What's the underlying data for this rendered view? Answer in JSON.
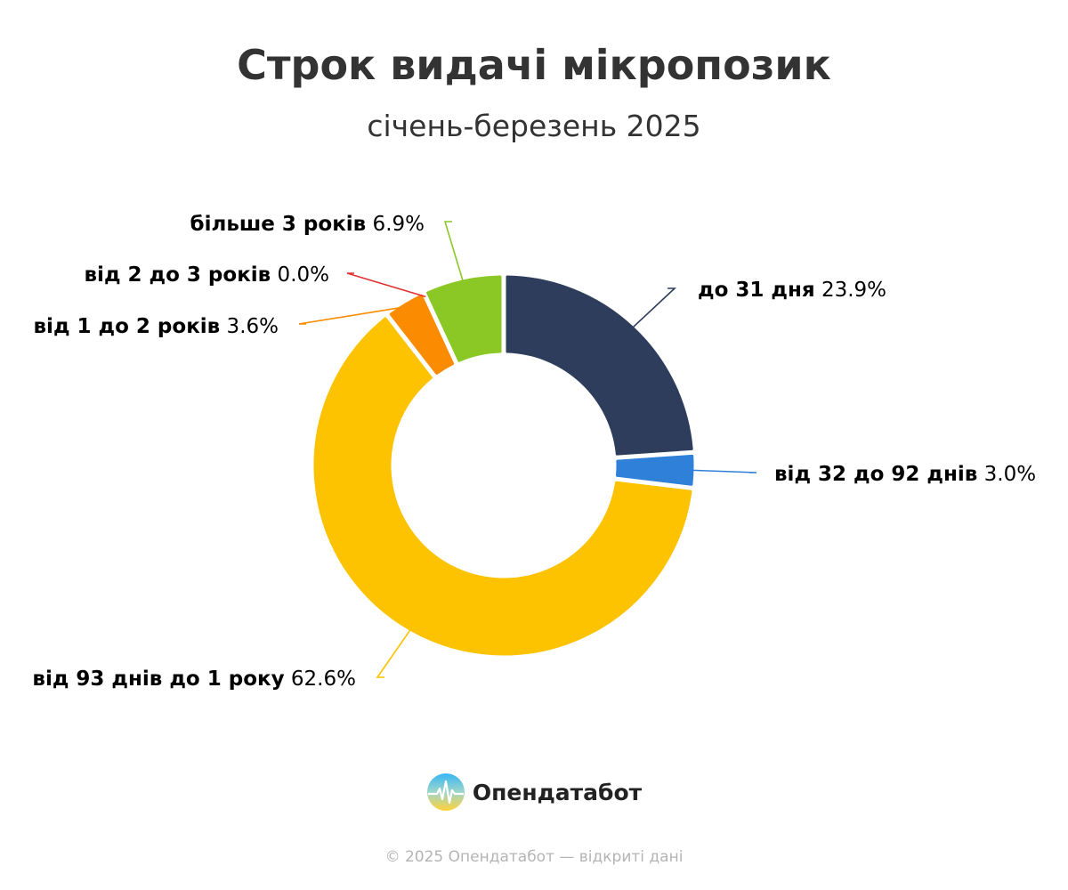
{
  "chart_data": {
    "type": "pie",
    "variant": "donut",
    "title": "Строк видачі мікропозик",
    "subtitle": "січень-березень 2025",
    "unit": "%",
    "slices": [
      {
        "label": "до 31 дня",
        "value": 23.9,
        "display": "23.9%",
        "color": "#2e3d5c"
      },
      {
        "label": "від 32 до 92 днів",
        "value": 3.0,
        "display": "3.0%",
        "color": "#2f80d9"
      },
      {
        "label": "від 93 днів до 1 року",
        "value": 62.6,
        "display": "62.6%",
        "color": "#fdc200"
      },
      {
        "label": "від 1 до 2 років",
        "value": 3.6,
        "display": "3.6%",
        "color": "#fb8b00"
      },
      {
        "label": "від 2 до 3 років",
        "value": 0.0,
        "display": "0.0%",
        "color": "#e03131"
      },
      {
        "label": "більше 3 років",
        "value": 6.9,
        "display": "6.9%",
        "color": "#8bc826"
      }
    ]
  },
  "brand": {
    "name": "Опендатабот",
    "logo_icon": "opendatabot-logo-icon"
  },
  "footer": {
    "text": "© 2025 Опендатабот — відкриті дані"
  }
}
